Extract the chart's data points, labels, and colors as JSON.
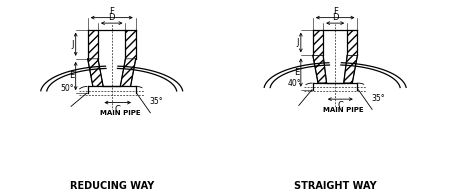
{
  "bg_color": "#ffffff",
  "line_color": "#000000",
  "title1": "REDUCING WAY",
  "title2": "STRAIGHT WAY",
  "angle1": "50°",
  "angle2": "40°",
  "angle3": "35°",
  "dim_F": "F",
  "dim_D": "D",
  "dim_J": "J",
  "dim_E": "E",
  "dim_C": "C",
  "main_pipe": "MAIN PIPE"
}
